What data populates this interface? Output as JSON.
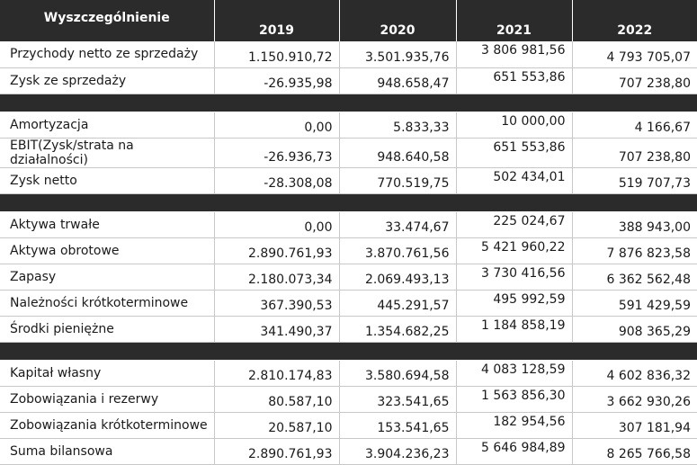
{
  "table": {
    "headers": [
      "Wyszczególnienie",
      "2019",
      "2020",
      "2021",
      "2022"
    ],
    "groups": [
      [
        [
          "Przychody netto ze sprzedaży",
          "1.150.910,72",
          "3.501.935,76",
          "3 806 981,56",
          "4 793 705,07"
        ],
        [
          "Zysk ze sprzedaży",
          "-26.935,98",
          "948.658,47",
          "651 553,86",
          "707 238,80"
        ]
      ],
      [
        [
          "Amortyzacja",
          "0,00",
          "5.833,33",
          "10 000,00",
          "4 166,67"
        ],
        [
          "EBIT(Zysk/strata na działalności)",
          "-26.936,73",
          "948.640,58",
          "651 553,86",
          "707 238,80"
        ],
        [
          "Zysk netto",
          "-28.308,08",
          "770.519,75",
          "502 434,01",
          "519 707,73"
        ]
      ],
      [
        [
          "Aktywa trwałe",
          "0,00",
          "33.474,67",
          "225 024,67",
          "388 943,00"
        ],
        [
          "Aktywa obrotowe",
          "2.890.761,93",
          "3.870.761,56",
          "5 421 960,22",
          "7 876 823,58"
        ],
        [
          "Zapasy",
          "2.180.073,34",
          "2.069.493,13",
          "3 730 416,56",
          "6 362 562,48"
        ],
        [
          "Należności krótkoterminowe",
          "367.390,53",
          "445.291,57",
          "495 992,59",
          "591 429,59"
        ],
        [
          "Środki pieniężne",
          "341.490,37",
          "1.354.682,25",
          "1 184 858,19",
          "908 365,29"
        ]
      ],
      [
        [
          "Kapitał własny",
          "2.810.174,83",
          "3.580.694,58",
          "4 083 128,59",
          "4 602 836,32"
        ],
        [
          "Zobowiązania i rezerwy",
          "80.587,10",
          "323.541,65",
          "1 563 856,30",
          "3 662 930,26"
        ],
        [
          "Zobowiązania krótkoterminowe",
          "20.587,10",
          "153.541,65",
          "182 954,56",
          "307 181,94"
        ],
        [
          "Suma bilansowa",
          "2.890.761,93",
          "3.904.236,23",
          "5 646 984,89",
          "8 265 766,58"
        ]
      ]
    ]
  }
}
